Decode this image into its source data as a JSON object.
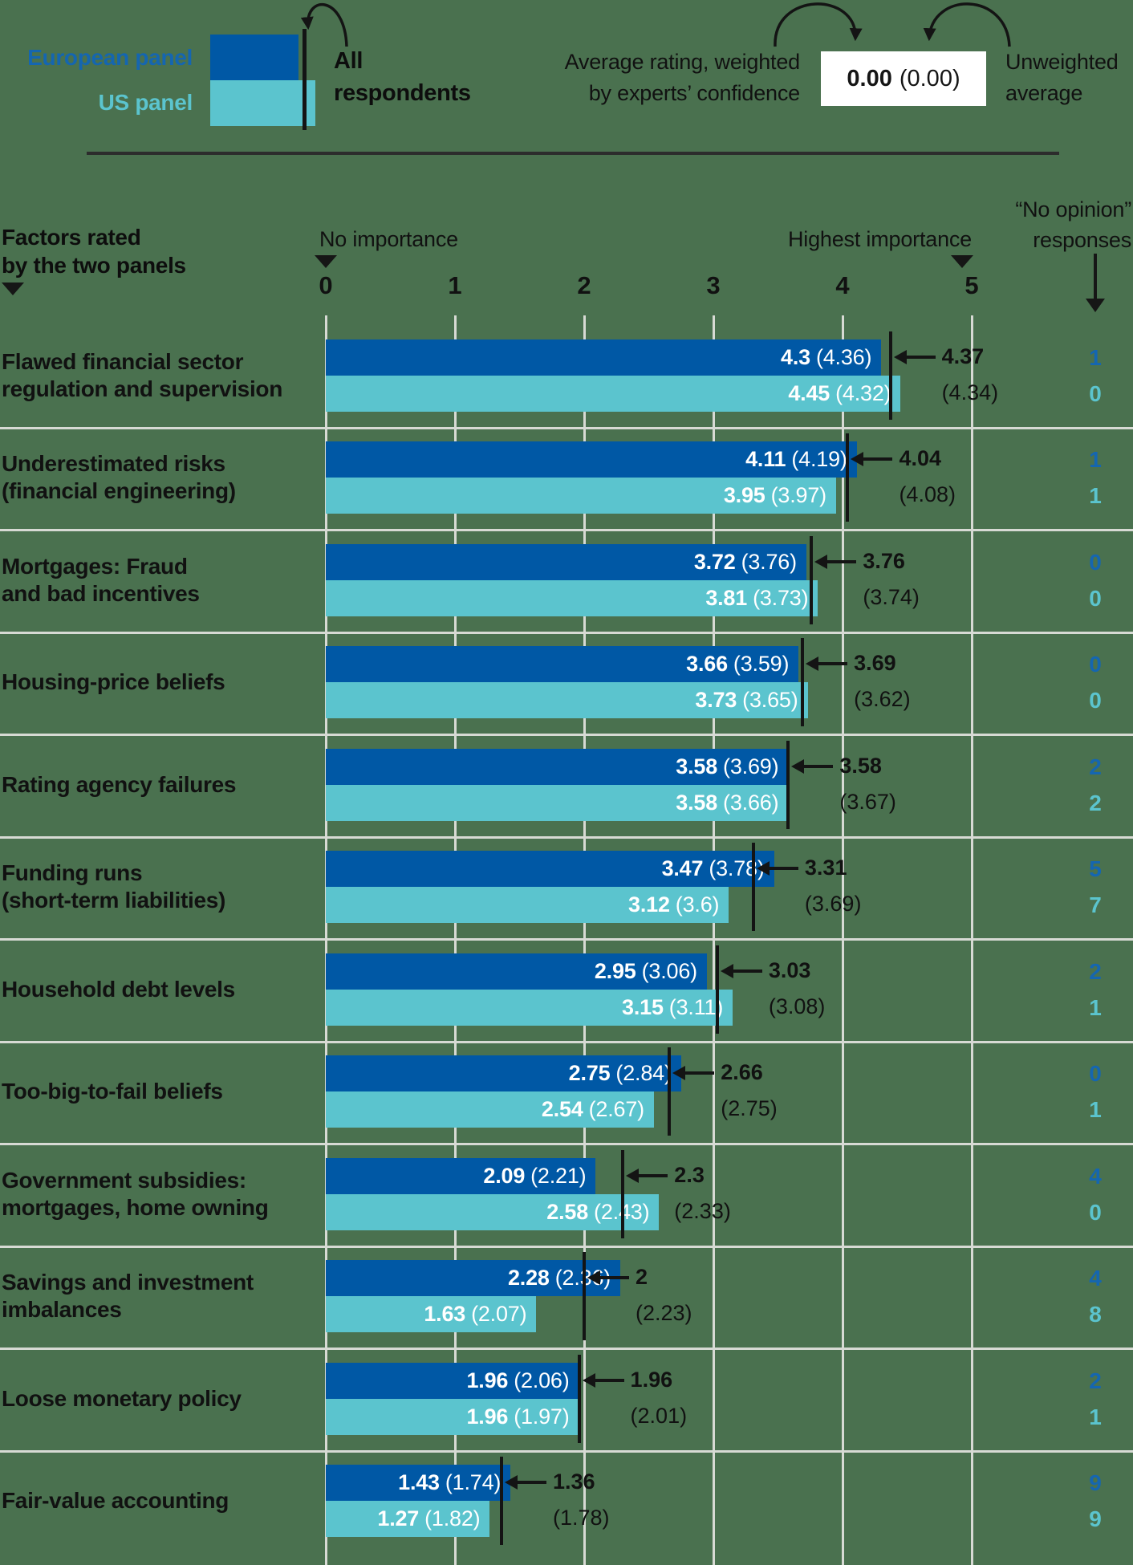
{
  "legend": {
    "eu_label": "European panel",
    "us_label": "US panel",
    "all_label_line1": "All",
    "all_label_line2": "respondents",
    "weighted_note_line1": "Average rating, weighted",
    "weighted_note_line2": "by experts’ confidence",
    "example_weighted": "0.00",
    "example_unweighted": "(0.00)",
    "unweighted_note_line1": "Unweighted",
    "unweighted_note_line2": "average"
  },
  "headers": {
    "factors_line1": "Factors rated",
    "factors_line2": "by the two panels",
    "no_importance": "No importance",
    "highest_importance": "Highest importance",
    "no_opinion_line1": "“No opinion”",
    "no_opinion_line2": "responses",
    "ticks": [
      "0",
      "1",
      "2",
      "3",
      "4",
      "5"
    ]
  },
  "colors": {
    "background": "#4a714f",
    "eu_bar": "#0058a5",
    "us_bar": "#5bc4ce",
    "eu_text": "#1566b0",
    "us_text": "#5bc4ce",
    "marker": "#141414",
    "gridline": "#d7dad4",
    "bar_value_text": "#ffffff",
    "example_box_bg": "#ffffff"
  },
  "rows": [
    {
      "label_lines": [
        "Flawed financial sector",
        "regulation and supervision"
      ],
      "eu_weighted": 4.3,
      "eu_label_weighted": "4.3",
      "eu_label_unweighted": "(4.36)",
      "us_weighted": 4.45,
      "us_label_weighted": "4.45",
      "us_label_unweighted": "(4.32)",
      "all_weighted": 4.37,
      "all_label_weighted": "4.37",
      "all_label_unweighted": "(4.34)",
      "no_opinion_eu": "1",
      "no_opinion_us": "0"
    },
    {
      "label_lines": [
        "Underestimated risks",
        "(financial engineering)"
      ],
      "eu_weighted": 4.11,
      "eu_label_weighted": "4.11",
      "eu_label_unweighted": "(4.19)",
      "us_weighted": 3.95,
      "us_label_weighted": "3.95",
      "us_label_unweighted": "(3.97)",
      "all_weighted": 4.04,
      "all_label_weighted": "4.04",
      "all_label_unweighted": "(4.08)",
      "no_opinion_eu": "1",
      "no_opinion_us": "1"
    },
    {
      "label_lines": [
        "Mortgages: Fraud",
        "and bad incentives"
      ],
      "eu_weighted": 3.72,
      "eu_label_weighted": "3.72",
      "eu_label_unweighted": "(3.76)",
      "us_weighted": 3.81,
      "us_label_weighted": "3.81",
      "us_label_unweighted": "(3.73)",
      "all_weighted": 3.76,
      "all_label_weighted": "3.76",
      "all_label_unweighted": "(3.74)",
      "no_opinion_eu": "0",
      "no_opinion_us": "0"
    },
    {
      "label_lines": [
        "Housing-price beliefs"
      ],
      "eu_weighted": 3.66,
      "eu_label_weighted": "3.66",
      "eu_label_unweighted": "(3.59)",
      "us_weighted": 3.73,
      "us_label_weighted": "3.73",
      "us_label_unweighted": "(3.65)",
      "all_weighted": 3.69,
      "all_label_weighted": "3.69",
      "all_label_unweighted": "(3.62)",
      "no_opinion_eu": "0",
      "no_opinion_us": "0"
    },
    {
      "label_lines": [
        "Rating agency failures"
      ],
      "eu_weighted": 3.58,
      "eu_label_weighted": "3.58",
      "eu_label_unweighted": "(3.69)",
      "us_weighted": 3.58,
      "us_label_weighted": "3.58",
      "us_label_unweighted": "(3.66)",
      "all_weighted": 3.58,
      "all_label_weighted": "3.58",
      "all_label_unweighted": "(3.67)",
      "no_opinion_eu": "2",
      "no_opinion_us": "2"
    },
    {
      "label_lines": [
        "Funding runs",
        "(short-term liabilities)"
      ],
      "eu_weighted": 3.47,
      "eu_label_weighted": "3.47",
      "eu_label_unweighted": "(3.78)",
      "us_weighted": 3.12,
      "us_label_weighted": "3.12",
      "us_label_unweighted": "(3.6)",
      "all_weighted": 3.31,
      "all_label_weighted": "3.31",
      "all_label_unweighted": "(3.69)",
      "no_opinion_eu": "5",
      "no_opinion_us": "7"
    },
    {
      "label_lines": [
        "Household debt levels"
      ],
      "eu_weighted": 2.95,
      "eu_label_weighted": "2.95",
      "eu_label_unweighted": "(3.06)",
      "us_weighted": 3.15,
      "us_label_weighted": "3.15",
      "us_label_unweighted": "(3.11)",
      "all_weighted": 3.03,
      "all_label_weighted": "3.03",
      "all_label_unweighted": "(3.08)",
      "no_opinion_eu": "2",
      "no_opinion_us": "1"
    },
    {
      "label_lines": [
        "Too-big-to-fail beliefs"
      ],
      "eu_weighted": 2.75,
      "eu_label_weighted": "2.75",
      "eu_label_unweighted": "(2.84)",
      "us_weighted": 2.54,
      "us_label_weighted": "2.54",
      "us_label_unweighted": "(2.67)",
      "all_weighted": 2.66,
      "all_label_weighted": "2.66",
      "all_label_unweighted": "(2.75)",
      "no_opinion_eu": "0",
      "no_opinion_us": "1"
    },
    {
      "label_lines": [
        "Government subsidies:",
        "mortgages, home owning"
      ],
      "eu_weighted": 2.09,
      "eu_label_weighted": "2.09",
      "eu_label_unweighted": "(2.21)",
      "us_weighted": 2.58,
      "us_label_weighted": "2.58",
      "us_label_unweighted": "(2.43)",
      "all_weighted": 2.3,
      "all_label_weighted": "2.3",
      "all_label_unweighted": "(2.33)",
      "no_opinion_eu": "4",
      "no_opinion_us": "0"
    },
    {
      "label_lines": [
        "Savings and investment",
        "imbalances"
      ],
      "eu_weighted": 2.28,
      "eu_label_weighted": "2.28",
      "eu_label_unweighted": "(2.36)",
      "us_weighted": 1.63,
      "us_label_weighted": "1.63",
      "us_label_unweighted": "(2.07)",
      "all_weighted": 2.0,
      "all_label_weighted": "2",
      "all_label_unweighted": "(2.23)",
      "no_opinion_eu": "4",
      "no_opinion_us": "8"
    },
    {
      "label_lines": [
        "Loose monetary policy"
      ],
      "eu_weighted": 1.96,
      "eu_label_weighted": "1.96",
      "eu_label_unweighted": "(2.06)",
      "us_weighted": 1.96,
      "us_label_weighted": "1.96",
      "us_label_unweighted": "(1.97)",
      "all_weighted": 1.96,
      "all_label_weighted": "1.96",
      "all_label_unweighted": "(2.01)",
      "no_opinion_eu": "2",
      "no_opinion_us": "1"
    },
    {
      "label_lines": [
        "Fair-value accounting"
      ],
      "eu_weighted": 1.43,
      "eu_label_weighted": "1.43",
      "eu_label_unweighted": "(1.74)",
      "us_weighted": 1.27,
      "us_label_weighted": "1.27",
      "us_label_unweighted": "(1.82)",
      "all_weighted": 1.36,
      "all_label_weighted": "1.36",
      "all_label_unweighted": "(1.78)",
      "no_opinion_eu": "9",
      "no_opinion_us": "9"
    }
  ],
  "chart_data": {
    "type": "bar",
    "orientation": "horizontal",
    "title": "Factors rated by the two panels",
    "xlabel": "Importance (0 = No importance, 5 = Highest importance)",
    "xlim": [
      0,
      5
    ],
    "x_ticks": [
      0,
      1,
      2,
      3,
      4,
      5
    ],
    "grid": true,
    "legend_position": "top",
    "categories": [
      "Flawed financial sector regulation and supervision",
      "Underestimated risks (financial engineering)",
      "Mortgages: Fraud and bad incentives",
      "Housing-price beliefs",
      "Rating agency failures",
      "Funding runs (short-term liabilities)",
      "Household debt levels",
      "Too-big-to-fail beliefs",
      "Government subsidies: mortgages, home owning",
      "Savings and investment imbalances",
      "Loose monetary policy",
      "Fair-value accounting"
    ],
    "series": [
      {
        "name": "European panel — average rating weighted by experts’ confidence",
        "values": [
          4.3,
          4.11,
          3.72,
          3.66,
          3.58,
          3.47,
          2.95,
          2.75,
          2.09,
          2.28,
          1.96,
          1.43
        ]
      },
      {
        "name": "European panel — unweighted average",
        "values": [
          4.36,
          4.19,
          3.76,
          3.59,
          3.69,
          3.78,
          3.06,
          2.84,
          2.21,
          2.36,
          2.06,
          1.74
        ]
      },
      {
        "name": "US panel — average rating weighted by experts’ confidence",
        "values": [
          4.45,
          3.95,
          3.81,
          3.73,
          3.58,
          3.12,
          3.15,
          2.54,
          2.58,
          1.63,
          1.96,
          1.27
        ]
      },
      {
        "name": "US panel — unweighted average",
        "values": [
          4.32,
          3.97,
          3.73,
          3.65,
          3.66,
          3.6,
          3.11,
          2.67,
          2.43,
          2.07,
          1.97,
          1.82
        ]
      },
      {
        "name": "All respondents — average rating weighted by experts’ confidence",
        "values": [
          4.37,
          4.04,
          3.76,
          3.69,
          3.58,
          3.31,
          3.03,
          2.66,
          2.3,
          2.0,
          1.96,
          1.36
        ]
      },
      {
        "name": "All respondents — unweighted average",
        "values": [
          4.34,
          4.08,
          3.74,
          3.62,
          3.67,
          3.69,
          3.08,
          2.75,
          2.33,
          2.23,
          2.01,
          1.78
        ]
      },
      {
        "name": "“No opinion” responses — European panel",
        "values": [
          1,
          1,
          0,
          0,
          2,
          5,
          2,
          0,
          4,
          4,
          2,
          9
        ]
      },
      {
        "name": "“No opinion” responses — US panel",
        "values": [
          0,
          1,
          0,
          0,
          2,
          7,
          1,
          1,
          0,
          8,
          1,
          9
        ]
      }
    ]
  }
}
